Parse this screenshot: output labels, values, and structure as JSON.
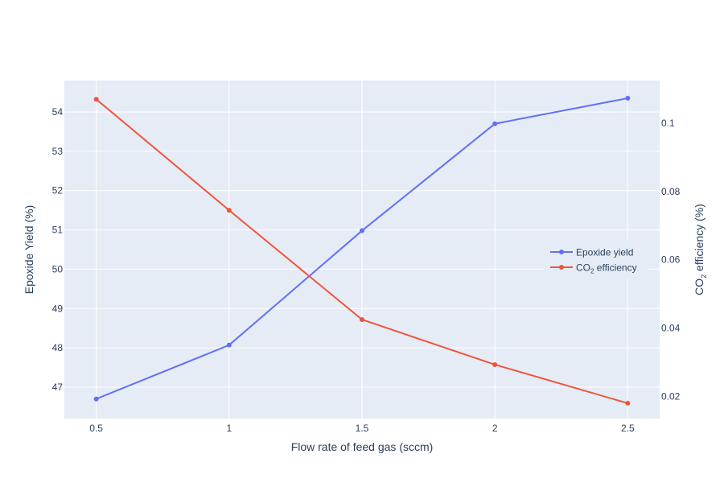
{
  "chart_data": {
    "type": "line",
    "xlabel": "Flow rate of feed gas (sccm)",
    "ylabel": "Epoxide Yield (%)",
    "y2label_main": "CO",
    "y2label_sub": "2",
    "y2label_rest": " efficiency (%)",
    "x": [
      0.5,
      1,
      1.5,
      2,
      2.5
    ],
    "xticks": [
      "0.5",
      "1",
      "1.5",
      "2",
      "2.5"
    ],
    "xlim": [
      0.38,
      2.62
    ],
    "ylim": [
      46.2,
      54.8
    ],
    "yticks": [
      47,
      48,
      49,
      50,
      51,
      52,
      53,
      54
    ],
    "y2lim": [
      0.0135,
      0.1125
    ],
    "y2ticks": [
      0.02,
      0.04,
      0.06,
      0.08,
      0.1
    ],
    "y2ticklabels": [
      "0.02",
      "0.04",
      "0.06",
      "0.08",
      "0.1"
    ],
    "grid": true,
    "legend_position": "right-middle",
    "series": [
      {
        "name": "Epoxide yield",
        "axis": "y",
        "color": "#636efa",
        "values": [
          46.7,
          48.07,
          50.98,
          53.7,
          54.35
        ]
      },
      {
        "name_main": "CO",
        "name_sub": "2",
        "name_rest": " efficiency",
        "axis": "y2",
        "color": "#ef553b",
        "values": [
          0.107,
          0.0745,
          0.0425,
          0.0293,
          0.018
        ]
      }
    ]
  }
}
